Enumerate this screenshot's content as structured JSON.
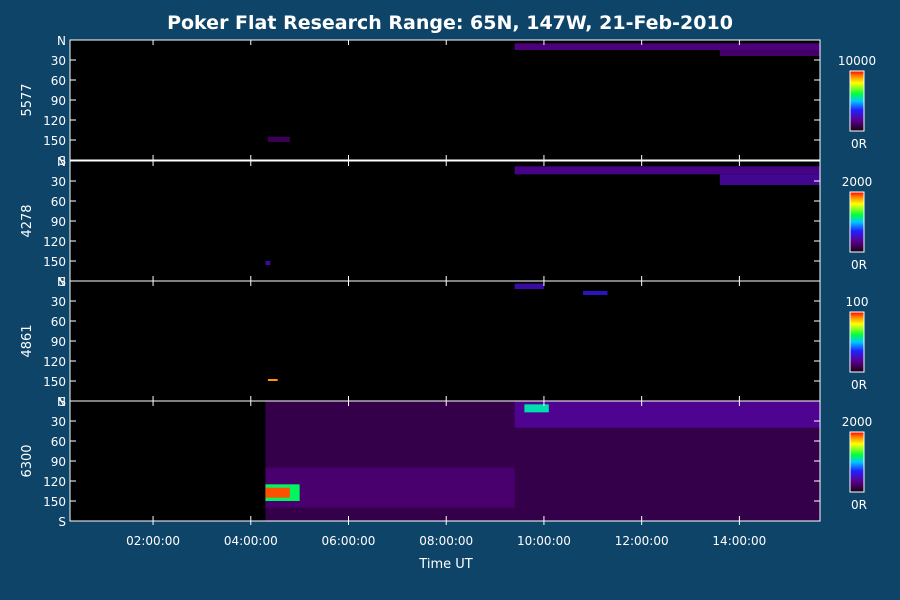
{
  "chart_data": {
    "type": "heatmap",
    "title": "Poker Flat Research Range: 65N, 147W, 21-Feb-2010",
    "xlabel": "Time UT",
    "x_ticks": [
      "02:00:00",
      "04:00:00",
      "06:00:00",
      "08:00:00",
      "10:00:00",
      "12:00:00",
      "14:00:00"
    ],
    "x_tick_hours": [
      2,
      4,
      6,
      8,
      10,
      12,
      14
    ],
    "xlim_hours": [
      0.3,
      15.65
    ],
    "y_ticks": [
      "N",
      "30",
      "60",
      "90",
      "120",
      "150",
      "S"
    ],
    "ylim_deg": [
      0,
      180
    ],
    "colorbar_min_label": "0R",
    "data_start_hour": 4.3,
    "panels": [
      {
        "label": "5577",
        "cbar_max": "10000",
        "features": [
          {
            "t0": 9.4,
            "t1": 15.65,
            "y": 5,
            "h": 10,
            "intensity": 0.18
          },
          {
            "t0": 13.6,
            "t1": 15.65,
            "y": 10,
            "h": 14,
            "intensity": 0.15
          },
          {
            "t0": 4.35,
            "t1": 4.8,
            "y": 145,
            "h": 8,
            "intensity": 0.12
          }
        ]
      },
      {
        "label": "4278",
        "cbar_max": "2000",
        "features": [
          {
            "t0": 9.4,
            "t1": 15.65,
            "y": 8,
            "h": 12,
            "intensity": 0.2
          },
          {
            "t0": 13.6,
            "t1": 15.65,
            "y": 20,
            "h": 16,
            "intensity": 0.22
          },
          {
            "t0": 4.3,
            "t1": 4.4,
            "y": 150,
            "h": 6,
            "intensity": 0.25
          }
        ]
      },
      {
        "label": "4861",
        "cbar_max": "100",
        "features": [
          {
            "t0": 9.4,
            "t1": 10.0,
            "y": 4,
            "h": 8,
            "intensity": 0.25
          },
          {
            "t0": 10.8,
            "t1": 11.3,
            "y": 15,
            "h": 6,
            "intensity": 0.3
          },
          {
            "t0": 4.35,
            "t1": 4.55,
            "y": 147,
            "h": 3,
            "intensity": 0.9
          }
        ]
      },
      {
        "label": "6300",
        "cbar_max": "2000",
        "features": [
          {
            "t0": 4.3,
            "t1": 15.65,
            "y": 0,
            "h": 180,
            "intensity": 0.1
          },
          {
            "t0": 4.3,
            "t1": 9.4,
            "y": 100,
            "h": 60,
            "intensity": 0.14
          },
          {
            "t0": 9.4,
            "t1": 15.65,
            "y": 0,
            "h": 40,
            "intensity": 0.2
          },
          {
            "t0": 9.6,
            "t1": 10.1,
            "y": 5,
            "h": 12,
            "intensity": 0.55
          },
          {
            "t0": 4.3,
            "t1": 5.0,
            "y": 125,
            "h": 25,
            "intensity": 0.6
          },
          {
            "t0": 4.3,
            "t1": 4.8,
            "y": 130,
            "h": 15,
            "intensity": 0.95
          }
        ]
      }
    ]
  }
}
